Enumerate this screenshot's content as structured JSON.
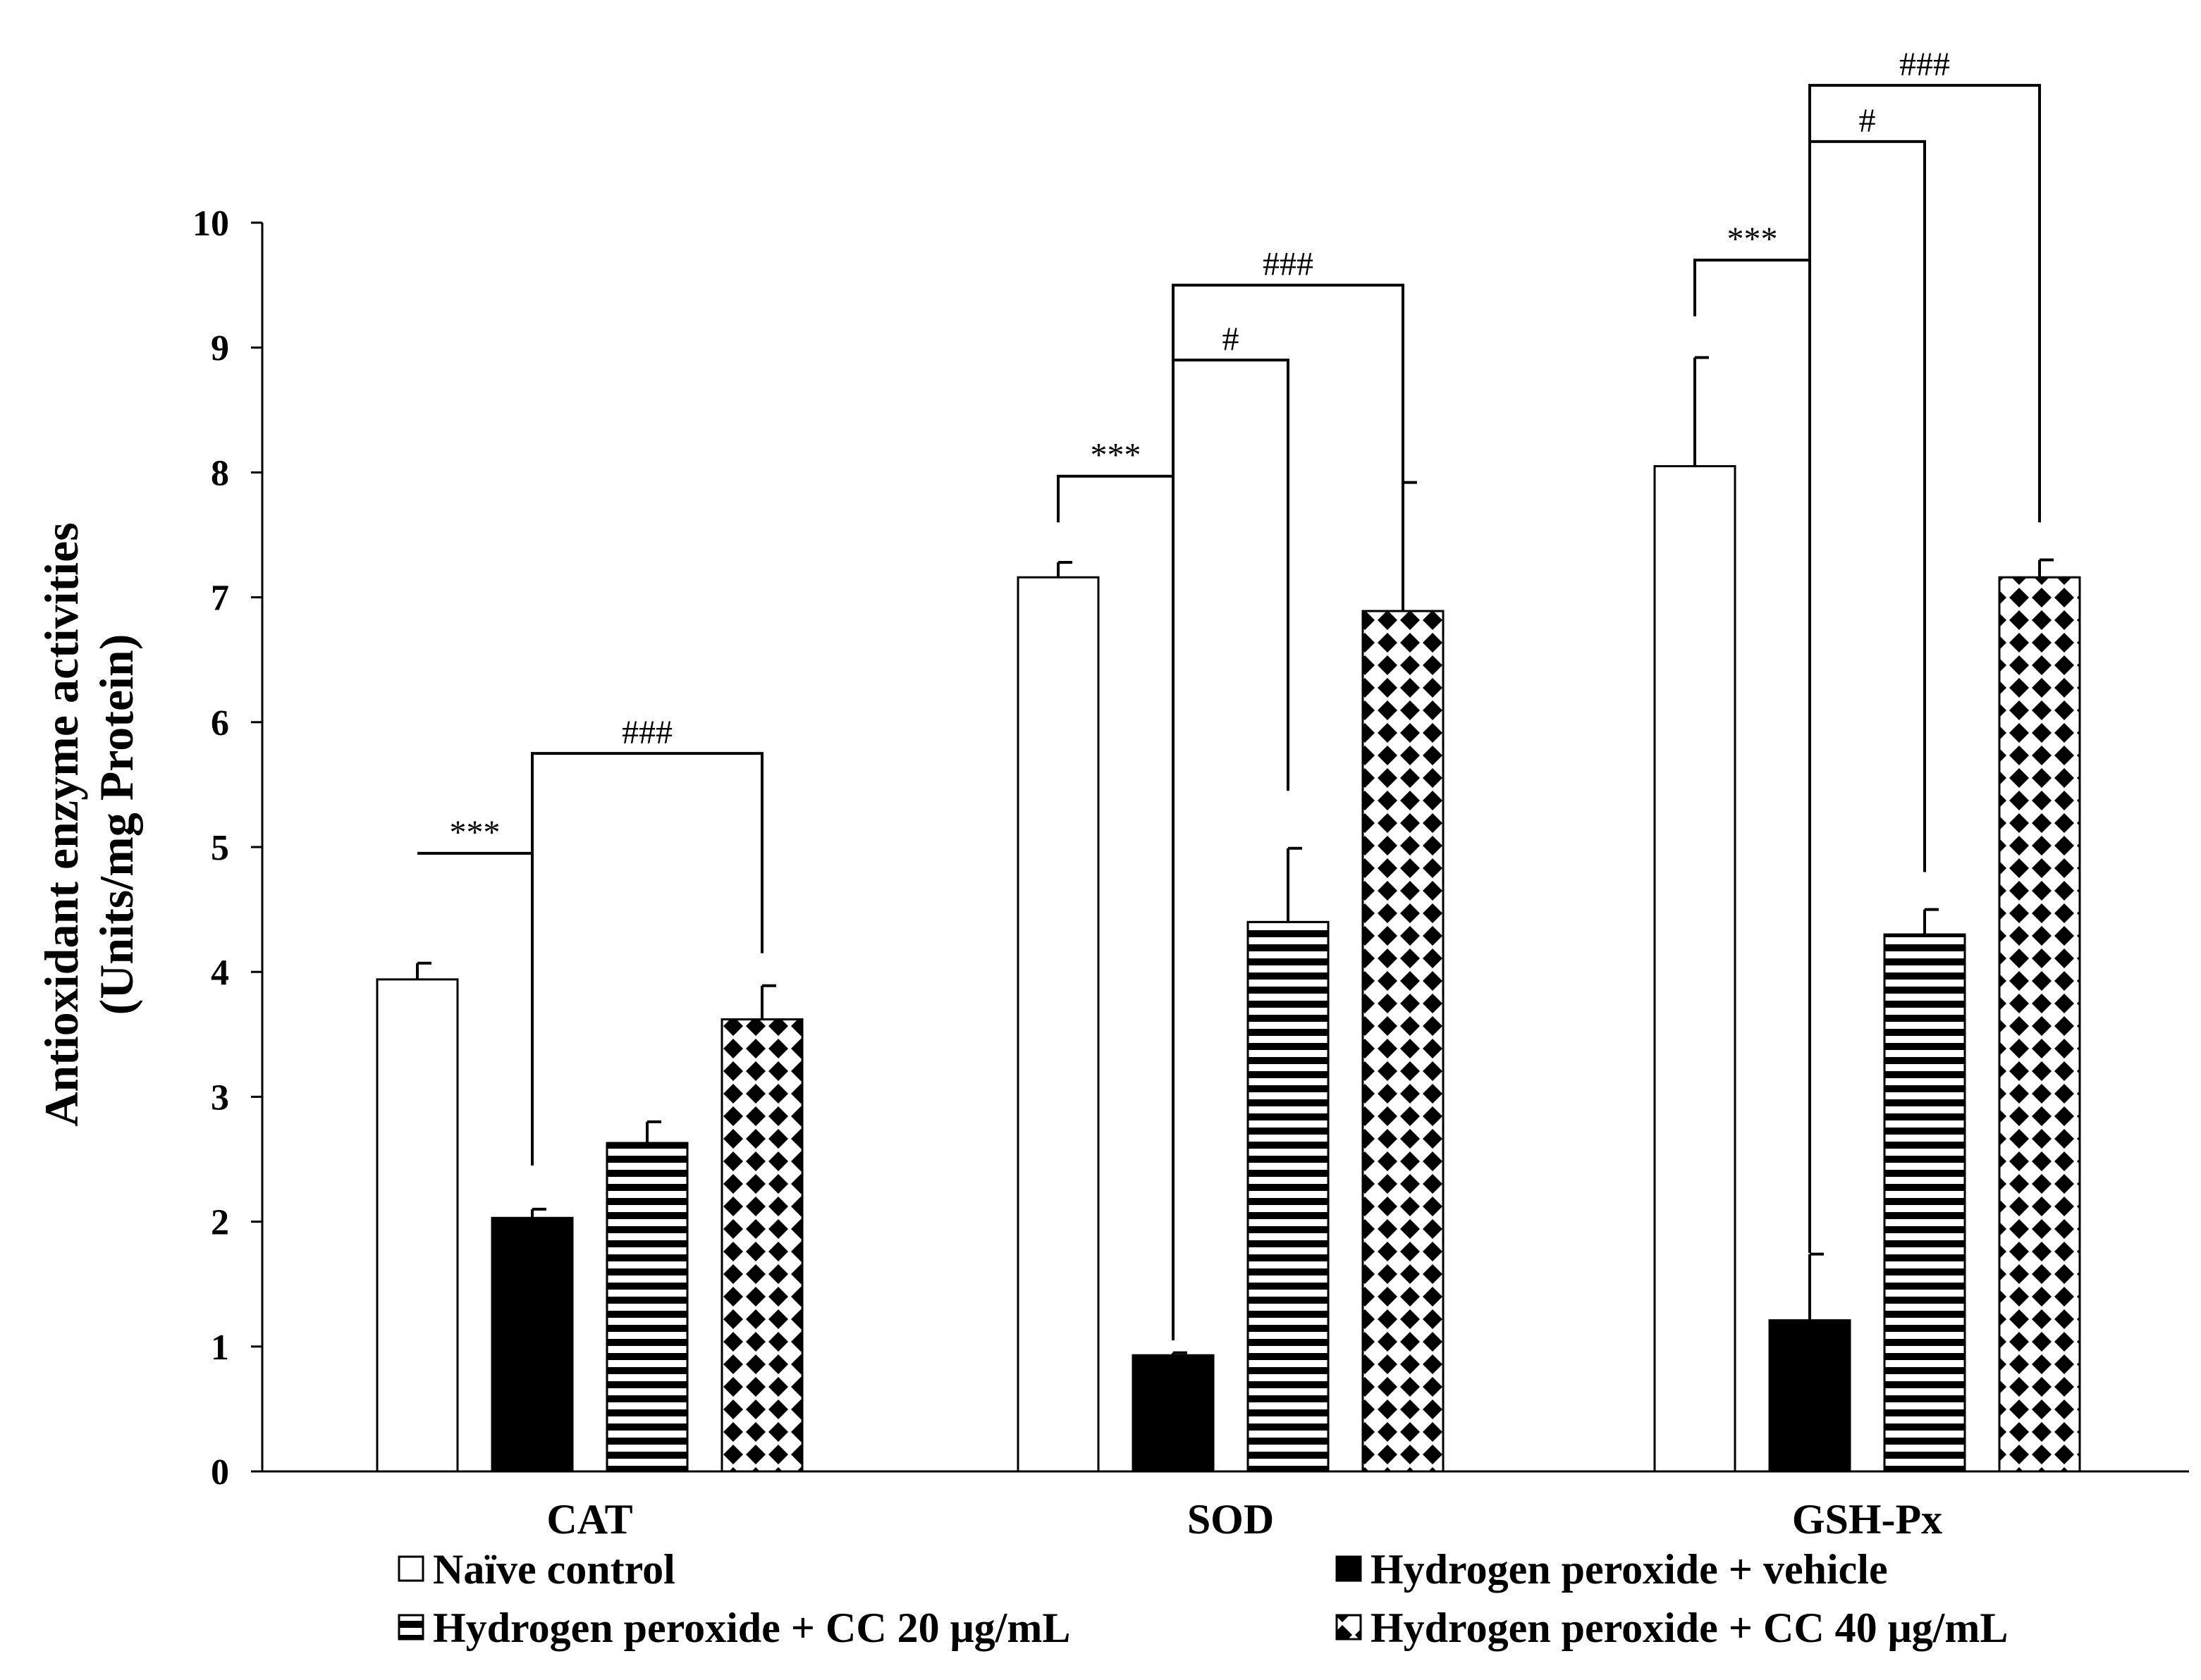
{
  "chart_data": {
    "type": "bar",
    "title": "",
    "xlabel": "",
    "ylabel_lines": [
      "Antioxidant enzyme activities",
      "(Units/mg Protein)"
    ],
    "ylim": [
      0,
      10
    ],
    "yticks": [
      "0",
      "1",
      "2",
      "3",
      "4",
      "5",
      "6",
      "7",
      "8",
      "9",
      "10"
    ],
    "categories": [
      "CAT",
      "SOD",
      "GSH-Px"
    ],
    "series": [
      {
        "name": "Naïve control",
        "pattern": "white",
        "values": [
          3.94,
          7.16,
          8.05
        ],
        "errors": [
          0.13,
          0.12,
          0.87
        ]
      },
      {
        "name": "Hydrogen peroxide + vehicle",
        "pattern": "black",
        "values": [
          2.03,
          0.93,
          1.21
        ],
        "errors": [
          0.07,
          0.02,
          0.53
        ]
      },
      {
        "name": "Hydrogen peroxide + CC 20 μg/mL",
        "pattern": "stripes",
        "values": [
          2.63,
          4.4,
          4.3
        ],
        "errors": [
          0.17,
          0.59,
          0.2
        ]
      },
      {
        "name": "Hydrogen peroxide + CC 40 μg/mL",
        "pattern": "diamonds",
        "values": [
          3.62,
          6.89,
          7.16
        ],
        "errors": [
          0.27,
          1.03,
          0.14
        ]
      }
    ],
    "significance": [
      {
        "category": 0,
        "from": 1,
        "to": 0,
        "label": "***",
        "level": 4.95,
        "to_end": 4.95,
        "from_end": 2.45
      },
      {
        "category": 0,
        "from": 1,
        "to": 3,
        "label": "###",
        "level": 5.75,
        "to_end": 4.15,
        "from_end": 4.95
      },
      {
        "category": 1,
        "from": 1,
        "to": 0,
        "label": "***",
        "level": 7.97,
        "to_end": 7.6,
        "from_end": 1.05
      },
      {
        "category": 1,
        "from": 1,
        "to": 2,
        "label": "#",
        "level": 8.9,
        "to_end": 5.45,
        "from_end": 7.97
      },
      {
        "category": 1,
        "from": 1,
        "to": 3,
        "label": "###",
        "level": 9.5,
        "to_end": 7.0,
        "from_end": 8.9
      },
      {
        "category": 2,
        "from": 1,
        "to": 0,
        "label": "***",
        "level": 9.7,
        "to_end": 9.25,
        "from_end": 1.75
      },
      {
        "category": 2,
        "from": 1,
        "to": 2,
        "label": "#",
        "level": 10.65,
        "to_end": 4.8,
        "from_end": 9.7
      },
      {
        "category": 2,
        "from": 1,
        "to": 3,
        "label": "###",
        "level": 11.1,
        "to_end": 7.6,
        "from_end": 10.65
      }
    ],
    "legend": {
      "placement": "bottom",
      "entries": [
        "Naïve control",
        "Hydrogen peroxide + vehicle",
        "Hydrogen peroxide + CC 20 μg/mL",
        "Hydrogen peroxide + CC 40 μg/mL"
      ]
    },
    "grid": false
  }
}
